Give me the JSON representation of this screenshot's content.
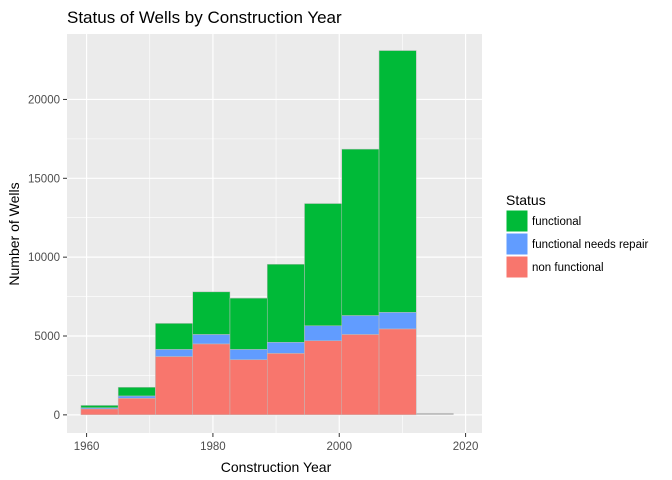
{
  "chart_data": {
    "type": "bar",
    "title": "Status of Wells by Construction Year",
    "xlabel": "Construction Year",
    "ylabel": "Number of Wells",
    "xlim": [
      1956.9,
      2022.6
    ],
    "ylim": [
      -1150,
      24150
    ],
    "xticks": [
      1960,
      1980,
      2000,
      2020
    ],
    "yticks": [
      0,
      5000,
      10000,
      15000,
      20000
    ],
    "xtick_labels": [
      "1960",
      "1980",
      "2000",
      "2020"
    ],
    "ytick_labels": [
      "0",
      "5000",
      "10000",
      "15000",
      "20000"
    ],
    "grid": true,
    "legend_position": "right",
    "bins": [
      {
        "x0": 1959.1,
        "x1": 1965.0
      },
      {
        "x0": 1965.0,
        "x1": 1970.9
      },
      {
        "x0": 1970.9,
        "x1": 1976.8
      },
      {
        "x0": 1976.8,
        "x1": 1982.7
      },
      {
        "x0": 1982.7,
        "x1": 1988.6
      },
      {
        "x0": 1988.6,
        "x1": 1994.5
      },
      {
        "x0": 1994.5,
        "x1": 2000.4
      },
      {
        "x0": 2000.4,
        "x1": 2006.3
      },
      {
        "x0": 2006.3,
        "x1": 2012.2
      },
      {
        "x0": 2012.2,
        "x1": 2018.1
      }
    ],
    "series": [
      {
        "name": "non functional",
        "color": "#F8766D",
        "values": [
          380,
          1050,
          3700,
          4500,
          3500,
          3900,
          4700,
          5100,
          5450,
          0
        ]
      },
      {
        "name": "functional needs repair",
        "color": "#619CFF",
        "values": [
          70,
          150,
          450,
          600,
          650,
          700,
          950,
          1200,
          1050,
          0
        ]
      },
      {
        "name": "functional",
        "color": "#00BA38",
        "values": [
          150,
          550,
          1650,
          2700,
          3250,
          4950,
          7750,
          10550,
          16600,
          0
        ]
      }
    ],
    "stack_order": [
      "non functional",
      "functional needs repair",
      "functional"
    ],
    "overflow_bin": {
      "x0": 2012.2,
      "x1": 2018.1,
      "value": 120,
      "color": "#BEBEBE"
    },
    "legend": {
      "title": "Status",
      "entries": [
        {
          "label": "functional",
          "color": "#00BA38"
        },
        {
          "label": "functional needs repair",
          "color": "#619CFF"
        },
        {
          "label": "non functional",
          "color": "#F8766D"
        }
      ]
    },
    "colors": {
      "panel": "#EBEBEB",
      "grid_major": "#FFFFFF",
      "bar_outline": "#BEBEBE"
    }
  }
}
